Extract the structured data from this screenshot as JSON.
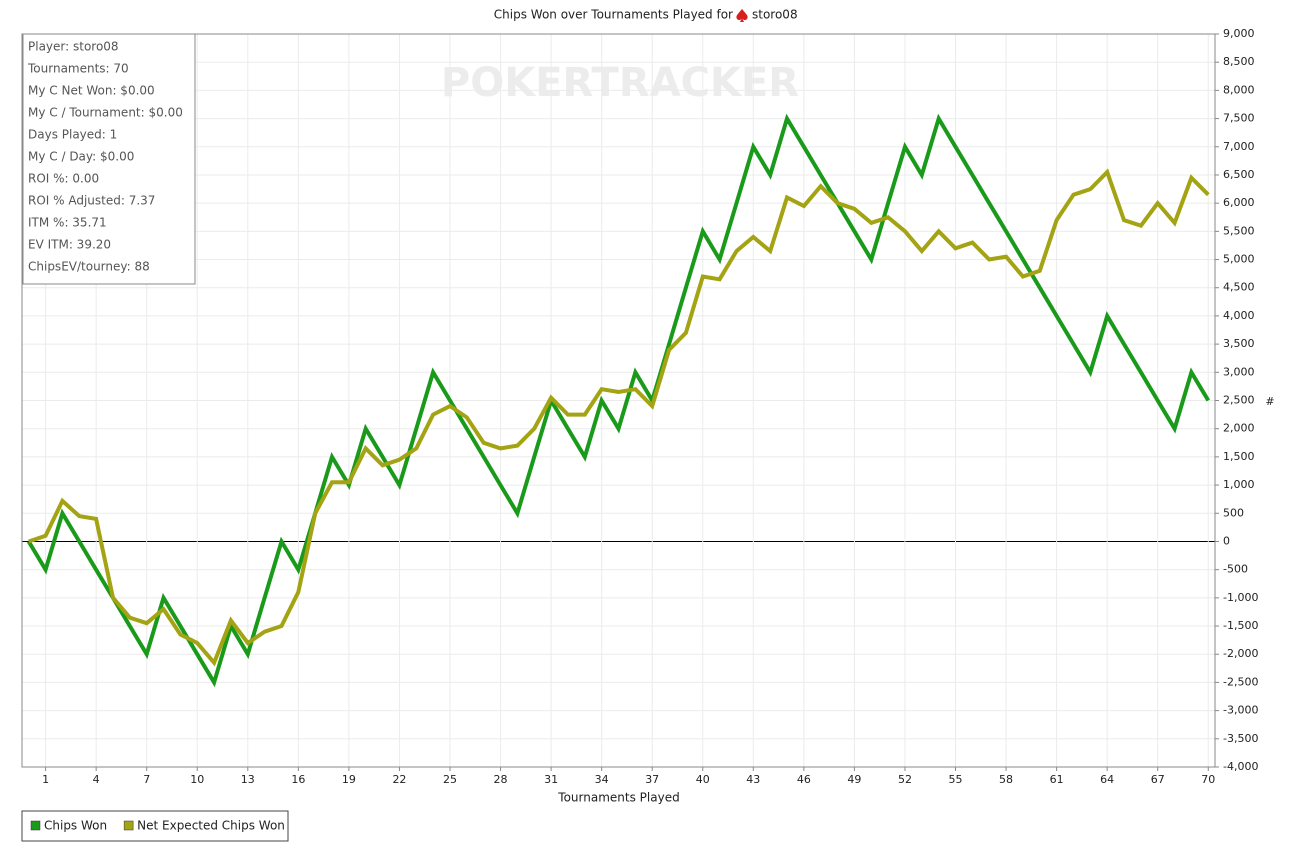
{
  "chart_data": {
    "type": "line",
    "title": "Chips Won over Tournaments Played for",
    "title_player": "storo08",
    "watermark": "POKERTRACKER",
    "xlabel": "Tournaments Played",
    "ylabel": "#",
    "x": [
      0,
      1,
      2,
      3,
      4,
      5,
      6,
      7,
      8,
      9,
      10,
      11,
      12,
      13,
      14,
      15,
      16,
      17,
      18,
      19,
      20,
      21,
      22,
      23,
      24,
      25,
      26,
      27,
      28,
      29,
      30,
      31,
      32,
      33,
      34,
      35,
      36,
      37,
      38,
      39,
      40,
      41,
      42,
      43,
      44,
      45,
      46,
      47,
      48,
      49,
      50,
      51,
      52,
      53,
      54,
      55,
      56,
      57,
      58,
      59,
      60,
      61,
      62,
      63,
      64,
      65,
      66,
      67,
      68,
      69,
      70
    ],
    "xlim": [
      -0.4,
      70.4
    ],
    "xticks": [
      1,
      4,
      7,
      10,
      13,
      16,
      19,
      22,
      25,
      28,
      31,
      34,
      37,
      40,
      43,
      46,
      49,
      52,
      55,
      58,
      61,
      64,
      67,
      70
    ],
    "ylim": [
      -4000,
      9000
    ],
    "yticks": [
      {
        "value": -4000,
        "label": "-4,000"
      },
      {
        "value": -3500,
        "label": "-3,500"
      },
      {
        "value": -3000,
        "label": "-3,000"
      },
      {
        "value": -2500,
        "label": "-2,500"
      },
      {
        "value": -2000,
        "label": "-2,000"
      },
      {
        "value": -1500,
        "label": "-1,500"
      },
      {
        "value": -1000,
        "label": "-1,000"
      },
      -500,
      0,
      500,
      {
        "value": 1000,
        "label": "1,000"
      },
      {
        "value": 1500,
        "label": "1,500"
      },
      {
        "value": 2000,
        "label": "2,000"
      },
      {
        "value": 2500,
        "label": "2,500"
      },
      {
        "value": 3000,
        "label": "3,000"
      },
      {
        "value": 3500,
        "label": "3,500"
      },
      {
        "value": 4000,
        "label": "4,000"
      },
      {
        "value": 4500,
        "label": "4,500"
      },
      {
        "value": 5000,
        "label": "5,000"
      },
      {
        "value": 5500,
        "label": "5,500"
      },
      {
        "value": 6000,
        "label": "6,000"
      },
      {
        "value": 6500,
        "label": "6,500"
      },
      {
        "value": 7000,
        "label": "7,000"
      },
      {
        "value": 7500,
        "label": "7,500"
      },
      {
        "value": 8000,
        "label": "8,000"
      },
      {
        "value": 8500,
        "label": "8,500"
      },
      {
        "value": 9000,
        "label": "9,000"
      }
    ],
    "grid": true,
    "legend": "bottom-left",
    "series": [
      {
        "name": "Chips Won",
        "color": "#1a9a1a",
        "values": [
          0,
          -500,
          500,
          0,
          -500,
          -1000,
          -1500,
          -2000,
          -1000,
          -1500,
          -2000,
          -2500,
          -1500,
          -2000,
          -1000,
          0,
          -500,
          500,
          1500,
          1000,
          2000,
          1500,
          1000,
          2000,
          3000,
          2500,
          2000,
          1500,
          1000,
          500,
          1500,
          2500,
          2000,
          1500,
          2500,
          2000,
          3000,
          2500,
          3500,
          4500,
          5500,
          5000,
          6000,
          7000,
          6500,
          7500,
          7000,
          6500,
          6000,
          5500,
          5000,
          6000,
          7000,
          6500,
          7500,
          7000,
          6500,
          6000,
          5500,
          5000,
          4500,
          4000,
          3500,
          3000,
          4000,
          3500,
          3000,
          2500,
          2000,
          3000,
          2500
        ]
      },
      {
        "name": "Net Expected Chips Won",
        "color": "#a3a313",
        "values": [
          0,
          100,
          720,
          450,
          400,
          -1000,
          -1350,
          -1450,
          -1200,
          -1650,
          -1800,
          -2150,
          -1400,
          -1800,
          -1600,
          -1500,
          -900,
          500,
          1050,
          1050,
          1650,
          1350,
          1450,
          1650,
          2250,
          2400,
          2200,
          1750,
          1650,
          1700,
          2000,
          2550,
          2250,
          2250,
          2700,
          2650,
          2700,
          2400,
          3400,
          3700,
          4700,
          4650,
          5150,
          5400,
          5150,
          6100,
          5950,
          6300,
          6000,
          5900,
          5650,
          5750,
          5500,
          5150,
          5500,
          5200,
          5300,
          5000,
          5050,
          4700,
          4800,
          5700,
          6150,
          6250,
          6550,
          5700,
          5600,
          6000,
          5650,
          6450,
          6150
        ]
      }
    ],
    "stats_box": [
      "Player: storo08",
      "Tournaments: 70",
      "My C Net Won: $0.00",
      "My C / Tournament: $0.00",
      "Days Played: 1",
      "My C / Day: $0.00",
      "ROI %: 0.00",
      "ROI % Adjusted: 7.37",
      "ITM %: 35.71",
      "EV ITM: 39.20",
      "ChipsEV/tourney: 88"
    ]
  }
}
